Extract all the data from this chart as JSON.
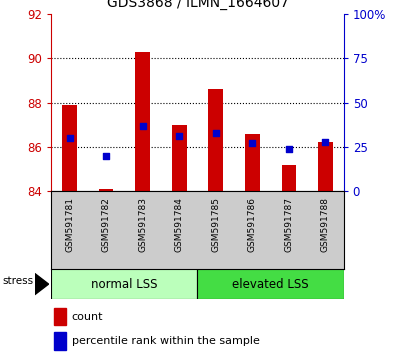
{
  "title": "GDS3868 / ILMN_1664607",
  "samples": [
    "GSM591781",
    "GSM591782",
    "GSM591783",
    "GSM591784",
    "GSM591785",
    "GSM591786",
    "GSM591787",
    "GSM591788"
  ],
  "red_values": [
    87.9,
    84.1,
    90.3,
    87.0,
    88.6,
    86.6,
    85.2,
    86.2
  ],
  "blue_values": [
    30,
    20,
    37,
    31,
    33,
    27,
    24,
    28
  ],
  "ylim_left": [
    84,
    92
  ],
  "ylim_right": [
    0,
    100
  ],
  "yticks_left": [
    84,
    86,
    88,
    90,
    92
  ],
  "yticks_right": [
    0,
    25,
    50,
    75,
    100
  ],
  "group1_label": "normal LSS",
  "group2_label": "elevated LSS",
  "group1_color": "#bbffbb",
  "group2_color": "#44dd44",
  "stress_label": "stress",
  "legend_red": "count",
  "legend_blue": "percentile rank within the sample",
  "bar_color": "#cc0000",
  "marker_color": "#0000cc",
  "tick_color_left": "#cc0000",
  "tick_color_right": "#0000cc",
  "base_value": 84,
  "xlabel_area_color": "#cccccc",
  "grid_yticks": [
    86,
    88,
    90
  ]
}
